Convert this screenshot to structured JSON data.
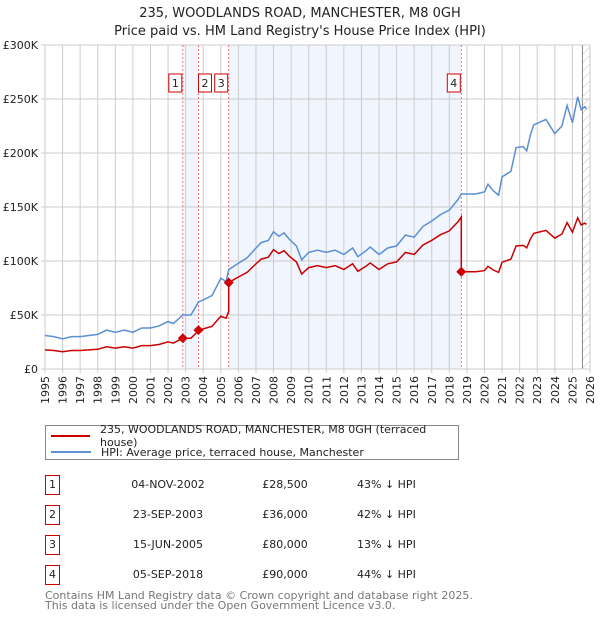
{
  "chart_data": {
    "type": "line",
    "title": "235, WOODLANDS ROAD, MANCHESTER, M8 0GH",
    "subtitle": "Price paid vs. HM Land Registry's House Price Index (HPI)",
    "xlim": [
      1995,
      2026
    ],
    "ylim": [
      0,
      300000
    ],
    "x_ticks": [
      "1995",
      "1996",
      "1997",
      "1998",
      "1999",
      "2000",
      "2001",
      "2002",
      "2003",
      "2004",
      "2005",
      "2006",
      "2007",
      "2008",
      "2009",
      "2010",
      "2011",
      "2012",
      "2013",
      "2014",
      "2015",
      "2016",
      "2017",
      "2018",
      "2019",
      "2020",
      "2021",
      "2022",
      "2023",
      "2024",
      "2025",
      "2026"
    ],
    "y_ticks": [
      {
        "v": 0,
        "label": "£0"
      },
      {
        "v": 50000,
        "label": "£50K"
      },
      {
        "v": 100000,
        "label": "£100K"
      },
      {
        "v": 150000,
        "label": "£150K"
      },
      {
        "v": 200000,
        "label": "£200K"
      },
      {
        "v": 250000,
        "label": "£250K"
      },
      {
        "v": 300000,
        "label": "£300K"
      }
    ],
    "grid": true,
    "forecast_start": 2025.57,
    "series": [
      {
        "name": "235, WOODLANDS ROAD, MANCHESTER, M8 0GH (terraced house)",
        "color": "#cc0000",
        "derived_from": "HPI scaled to each sale price"
      },
      {
        "name": "HPI: Average price, terraced house, Manchester",
        "color": "#5b8fd4",
        "x": [
          1995,
          1995.5,
          1996,
          1996.5,
          1997,
          1997.5,
          1998,
          1998.5,
          1999,
          1999.5,
          2000,
          2000.5,
          2001,
          2001.5,
          2002,
          2002.3,
          2002.84,
          2003.3,
          2003.73,
          2004,
          2004.5,
          2005,
          2005.3,
          2005.45,
          2006,
          2006.5,
          2007,
          2007.3,
          2007.7,
          2008,
          2008.3,
          2008.6,
          2008.9,
          2009.3,
          2009.6,
          2010,
          2010.5,
          2011,
          2011.5,
          2012,
          2012.5,
          2012.8,
          2013.3,
          2013.5,
          2014,
          2014.5,
          2015,
          2015.5,
          2016,
          2016.5,
          2017,
          2017.5,
          2018,
          2018.5,
          2018.68,
          2019,
          2019.5,
          2020,
          2020.2,
          2020.5,
          2020.8,
          2021,
          2021.5,
          2021.8,
          2022.2,
          2022.4,
          2022.6,
          2022.8,
          2023.2,
          2023.5,
          2024,
          2024.4,
          2024.7,
          2025,
          2025.3,
          2025.5,
          2025.7,
          2025.8
        ],
        "y": [
          31000,
          30000,
          28000,
          30000,
          30000,
          31000,
          32000,
          36000,
          34000,
          36000,
          34000,
          38000,
          38000,
          40000,
          44000,
          42000,
          50000,
          50000,
          62000,
          64000,
          68000,
          84000,
          81000,
          92000,
          98000,
          103000,
          112000,
          117000,
          119000,
          127000,
          123000,
          126000,
          120000,
          114000,
          101000,
          108000,
          110000,
          108000,
          110000,
          106000,
          112000,
          104000,
          110000,
          113000,
          106000,
          112000,
          114000,
          124000,
          122000,
          132000,
          137000,
          143000,
          147000,
          157000,
          162000,
          162000,
          162000,
          164000,
          171000,
          165000,
          161000,
          178000,
          183000,
          205000,
          206000,
          202000,
          216000,
          226000,
          229000,
          231000,
          218000,
          225000,
          244000,
          228000,
          252000,
          240000,
          243000,
          241000
        ]
      }
    ],
    "sales": [
      {
        "n": "1",
        "x": 2002.84,
        "date": "04-NOV-2002",
        "price": 28500,
        "price_label": "£28,500",
        "hpi": "43% ↓ HPI"
      },
      {
        "n": "2",
        "x": 2003.73,
        "date": "23-SEP-2003",
        "price": 36000,
        "price_label": "£36,000",
        "hpi": "42% ↓ HPI"
      },
      {
        "n": "3",
        "x": 2005.45,
        "date": "15-JUN-2005",
        "price": 80000,
        "price_label": "£80,000",
        "hpi": "13% ↓ HPI"
      },
      {
        "n": "4",
        "x": 2018.68,
        "date": "05-SEP-2018",
        "price": 90000,
        "price_label": "£90,000",
        "hpi": "44% ↓ HPI"
      }
    ],
    "legend": [
      "235, WOODLANDS ROAD, MANCHESTER, M8 0GH (terraced house)",
      "HPI: Average price, terraced house, Manchester"
    ],
    "legend_placement": "below"
  },
  "footer": [
    "Contains HM Land Registry data © Crown copyright and database right 2025.",
    "This data is licensed under the Open Government Licence v3.0."
  ]
}
